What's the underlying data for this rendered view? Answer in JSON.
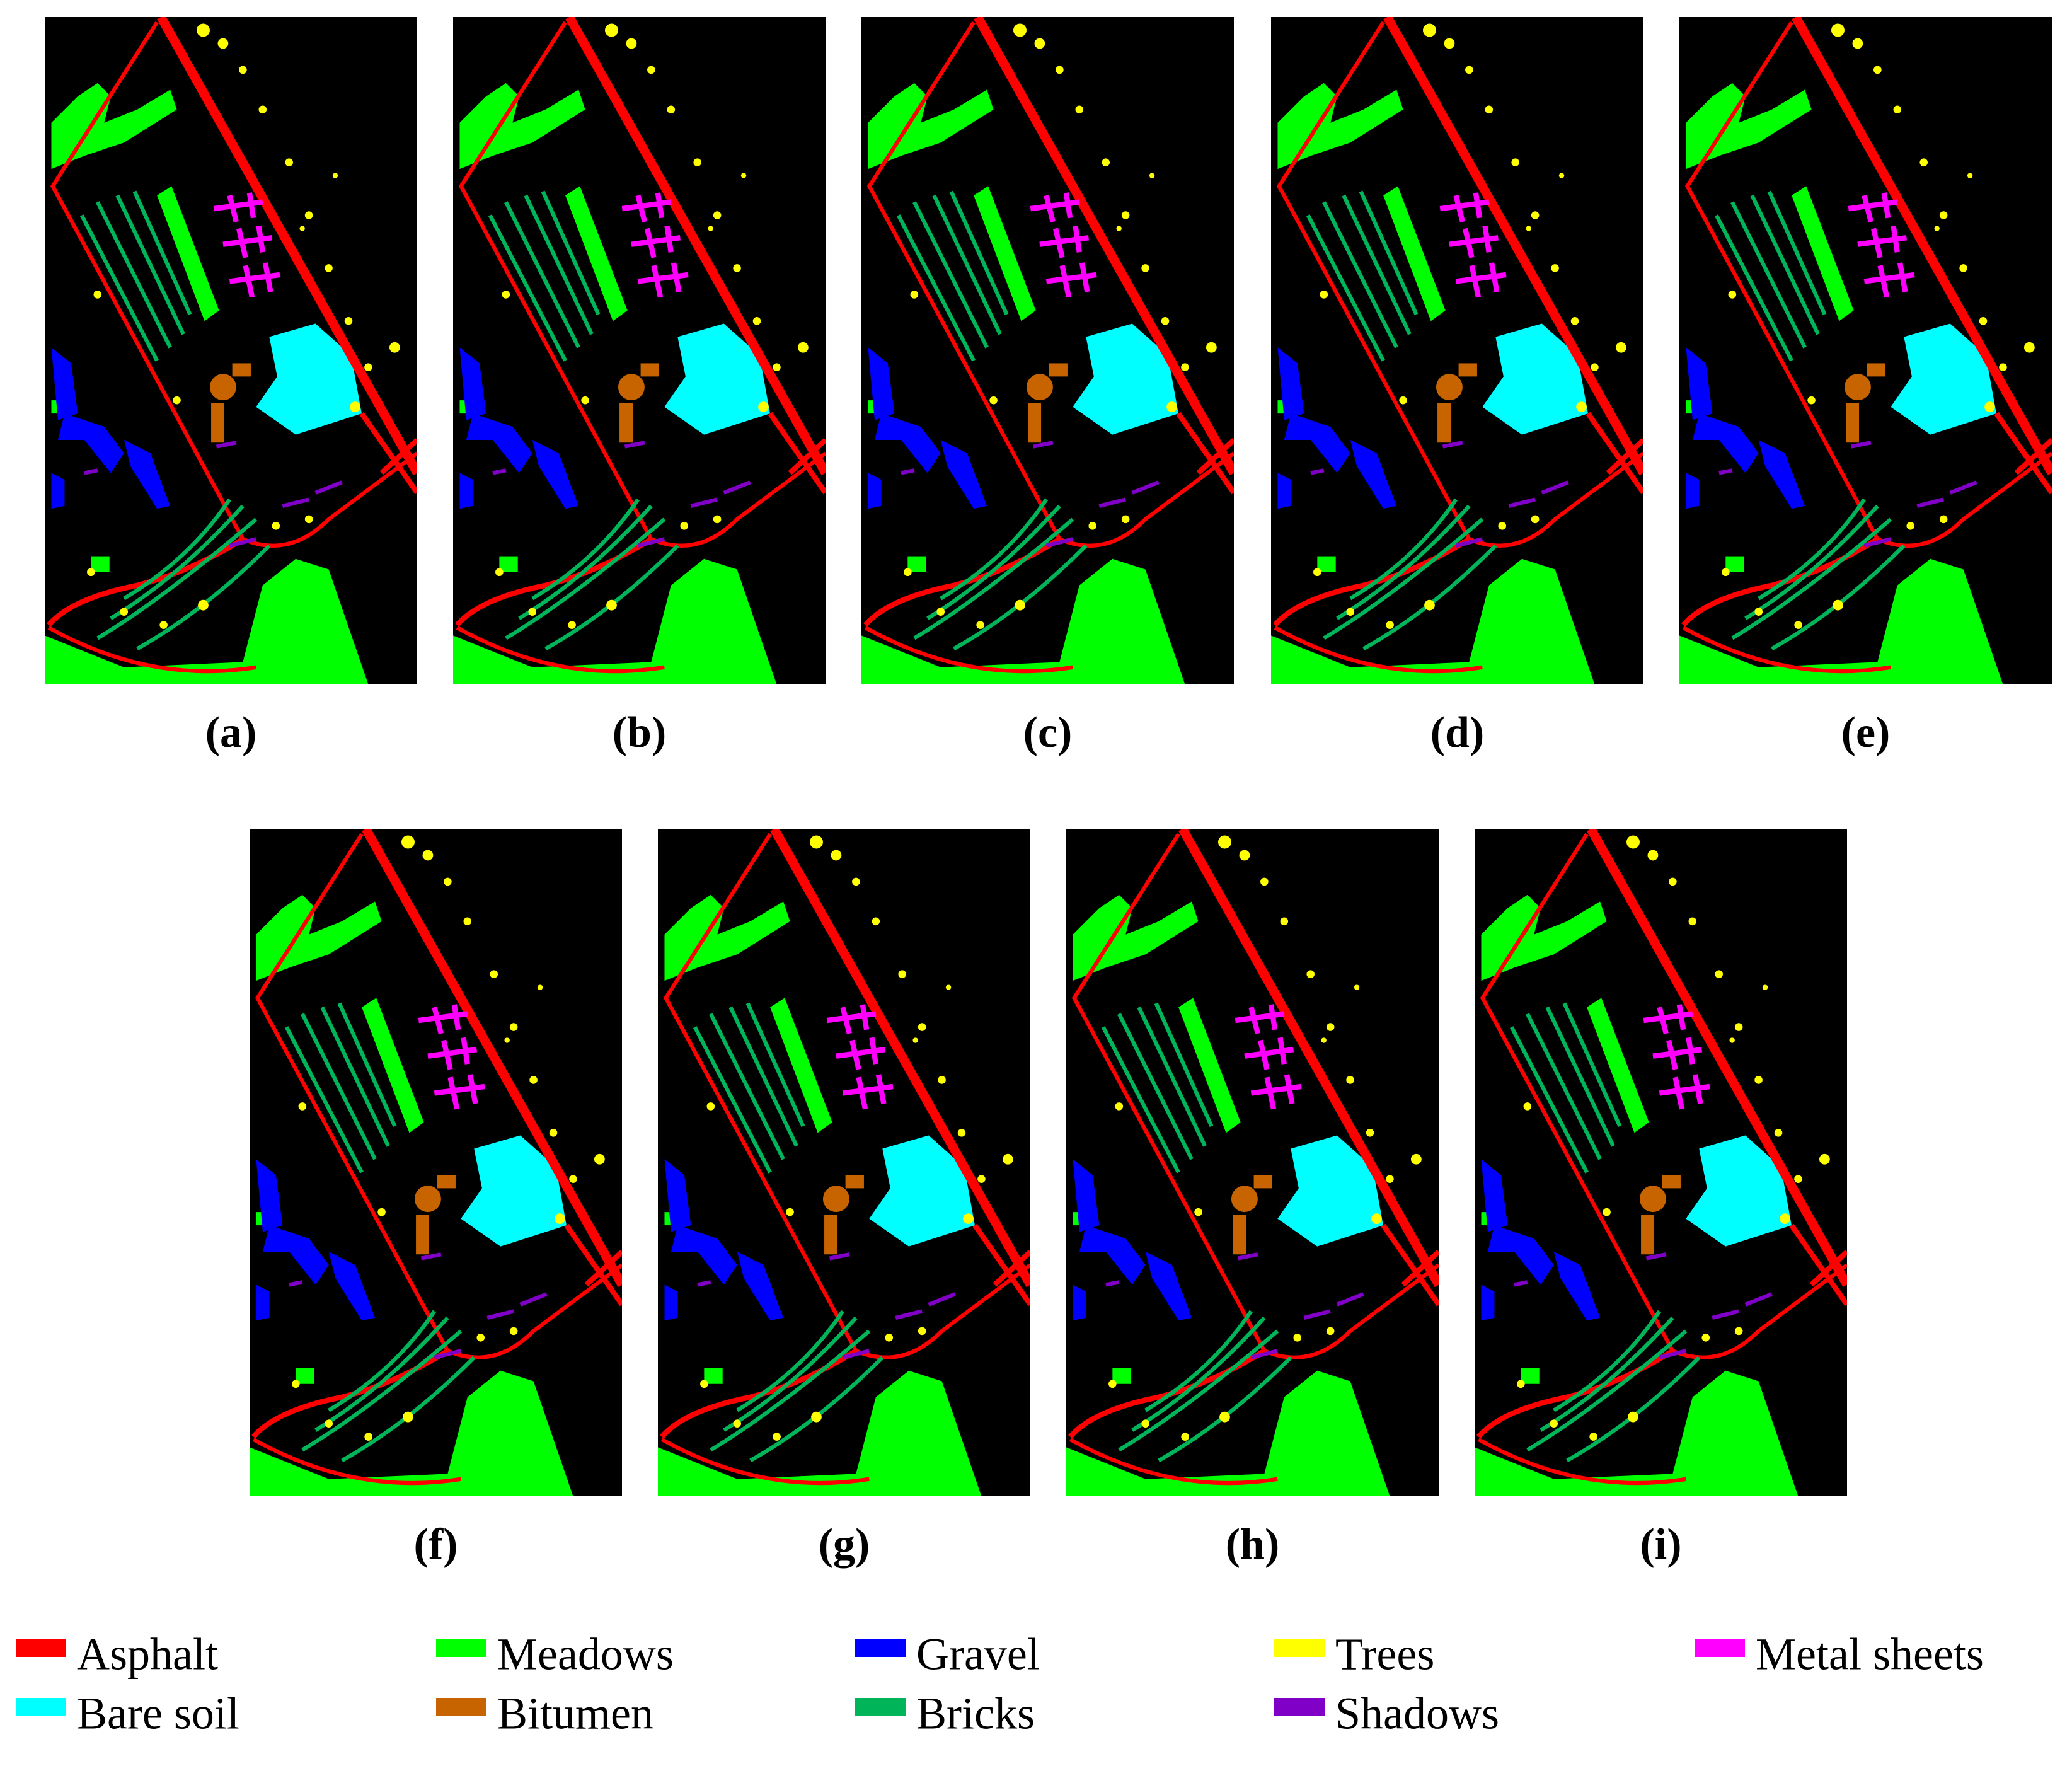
{
  "panels": [
    {
      "label": "(a)"
    },
    {
      "label": "(b)"
    },
    {
      "label": "(c)"
    },
    {
      "label": "(d)"
    },
    {
      "label": "(e)"
    },
    {
      "label": "(f)"
    },
    {
      "label": "(g)"
    },
    {
      "label": "(h)"
    },
    {
      "label": "(i)"
    }
  ],
  "legend": [
    {
      "name": "Asphalt",
      "color": "#ff0000"
    },
    {
      "name": "Meadows",
      "color": "#00ff00"
    },
    {
      "name": "Gravel",
      "color": "#0000ff"
    },
    {
      "name": "Trees",
      "color": "#ffff00"
    },
    {
      "name": "Metal sheets",
      "color": "#ff00ff"
    },
    {
      "name": "Bare soil",
      "color": "#00ffff"
    },
    {
      "name": "Bitumen",
      "color": "#c86400"
    },
    {
      "name": "Bricks",
      "color": "#00b45a"
    },
    {
      "name": "Shadows",
      "color": "#8000c8"
    }
  ]
}
